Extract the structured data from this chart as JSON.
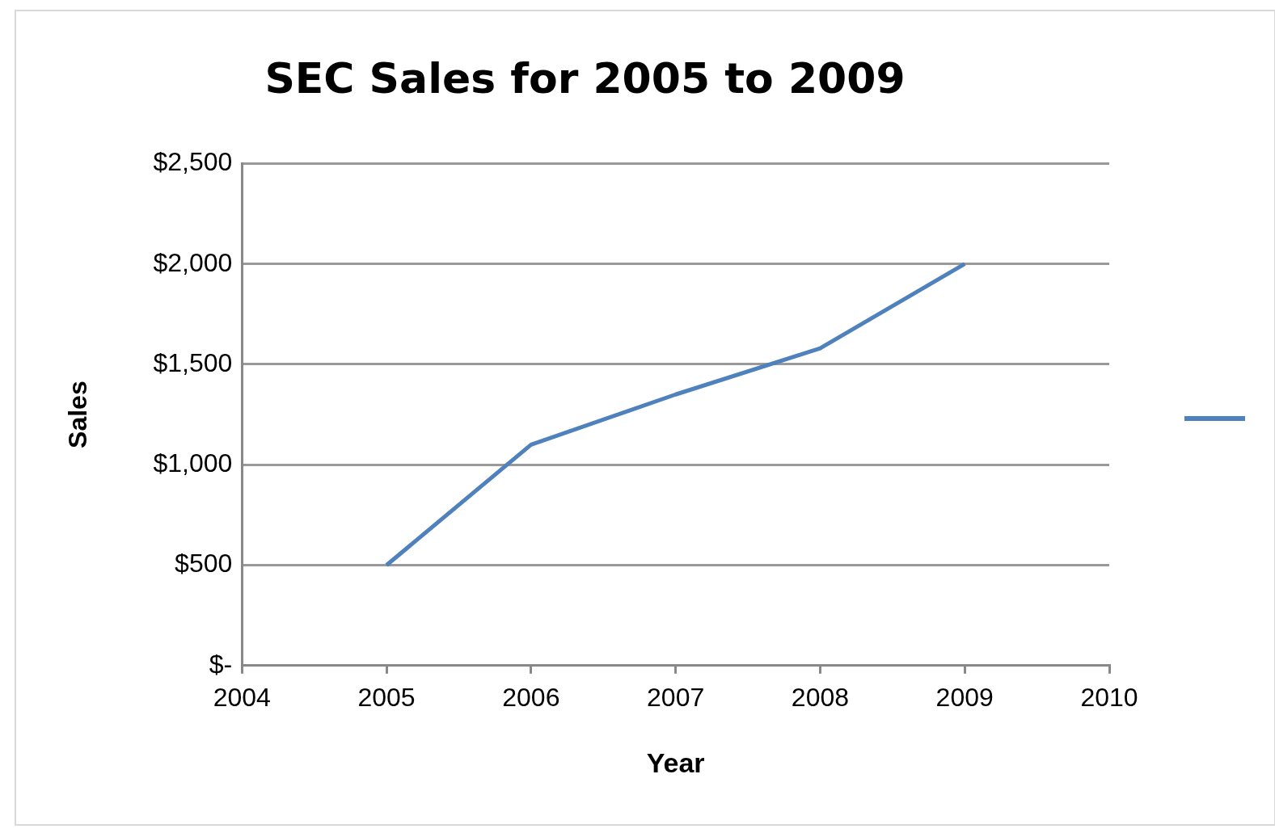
{
  "chart_data": {
    "type": "line",
    "title": "SEC Sales for 2005 to 2009",
    "xlabel": "Year",
    "ylabel": "Sales",
    "x": [
      2005,
      2006,
      2007,
      2008,
      2009
    ],
    "series": [
      {
        "color": "#4f81bd",
        "values": [
          500,
          1100,
          1350,
          1580,
          2000
        ]
      }
    ],
    "xlim": [
      2004,
      2010
    ],
    "xticks": [
      2004,
      2005,
      2006,
      2007,
      2008,
      2009,
      2010
    ],
    "ylim": [
      0,
      2500
    ],
    "yticks": [
      {
        "value": 0,
        "label": "$-"
      },
      {
        "value": 500,
        "label": "$500"
      },
      {
        "value": 1000,
        "label": "$1,000"
      },
      {
        "value": 1500,
        "label": "$1,500"
      },
      {
        "value": 2000,
        "label": "$2,000"
      },
      {
        "value": 2500,
        "label": "$2,500"
      }
    ],
    "grid": "y",
    "marker": "none"
  }
}
